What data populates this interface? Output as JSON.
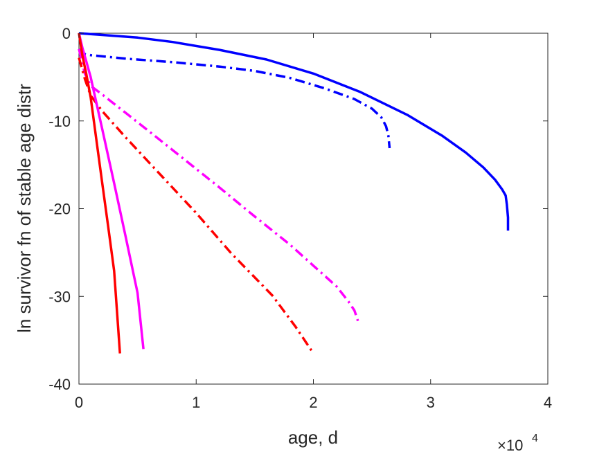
{
  "chart_data": {
    "type": "line",
    "title": "",
    "xlabel": "age, d",
    "ylabel": "ln survivor fn of stable age distr",
    "x_multiplier_label": "×10",
    "x_multiplier_exponent": "4",
    "xlim": [
      0,
      40000
    ],
    "ylim": [
      -40,
      0
    ],
    "xticks": [
      0,
      10000,
      20000,
      30000,
      40000
    ],
    "xtick_labels": [
      "0",
      "1",
      "2",
      "3",
      "4"
    ],
    "yticks": [
      0,
      -10,
      -20,
      -30,
      -40
    ],
    "ytick_labels": [
      "0",
      "-10",
      "-20",
      "-30",
      "-40"
    ],
    "grid": false,
    "legend": "none",
    "series": [
      {
        "color": "#0000ff",
        "dash": "solid",
        "x": [
          0,
          2000,
          5000,
          8000,
          12000,
          16000,
          20000,
          24000,
          28000,
          31000,
          33000,
          34500,
          35500,
          36100,
          36400,
          36500,
          36600,
          36600
        ],
        "y": [
          0,
          -0.2,
          -0.5,
          -1.0,
          -1.9,
          -3.0,
          -4.6,
          -6.7,
          -9.3,
          -11.7,
          -13.6,
          -15.3,
          -16.7,
          -17.8,
          -18.5,
          -19.5,
          -21.0,
          -22.5
        ]
      },
      {
        "color": "#0000ff",
        "dash": "dashdot",
        "x": [
          0,
          200,
          1000,
          4000,
          8000,
          12000,
          15000,
          18000,
          21000,
          23500,
          25000,
          25800,
          26200,
          26400,
          26500
        ],
        "y": [
          -1.8,
          -2.3,
          -2.5,
          -2.9,
          -3.3,
          -3.8,
          -4.3,
          -5.1,
          -6.3,
          -7.5,
          -8.6,
          -9.6,
          -10.6,
          -11.7,
          -13.1
        ]
      },
      {
        "color": "#ff00ff",
        "dash": "dashdot",
        "x": [
          0,
          500,
          1000,
          2000,
          4000,
          6000,
          9000,
          12000,
          15000,
          18000,
          20000,
          22000,
          23000,
          23500,
          23800
        ],
        "y": [
          -1.8,
          -4.6,
          -6.0,
          -7.0,
          -9.1,
          -11.2,
          -14.4,
          -17.6,
          -20.9,
          -24.1,
          -26.5,
          -28.9,
          -30.6,
          -31.6,
          -32.8
        ]
      },
      {
        "color": "#ff0000",
        "dash": "dashdot",
        "x": [
          0,
          500,
          1000,
          2000,
          4000,
          7000,
          10000,
          13000,
          16500,
          18500,
          20000
        ],
        "y": [
          -2.8,
          -5.2,
          -7.1,
          -8.9,
          -11.9,
          -16.2,
          -20.5,
          -25.1,
          -29.9,
          -33.5,
          -36.5
        ]
      },
      {
        "color": "#ff00ff",
        "dash": "solid",
        "x": [
          0,
          300,
          600,
          1000,
          2000,
          3000,
          4000,
          5000,
          5500
        ],
        "y": [
          0,
          -1.7,
          -3.1,
          -5.0,
          -11.0,
          -17.1,
          -23.3,
          -29.6,
          -36.0
        ]
      },
      {
        "color": "#ff0000",
        "dash": "solid",
        "x": [
          0,
          300,
          600,
          1000,
          1500,
          2000,
          2500,
          3000,
          3500
        ],
        "y": [
          0,
          -2.6,
          -4.5,
          -7.3,
          -12.3,
          -17.2,
          -22.1,
          -27.1,
          -36.5
        ]
      }
    ]
  }
}
